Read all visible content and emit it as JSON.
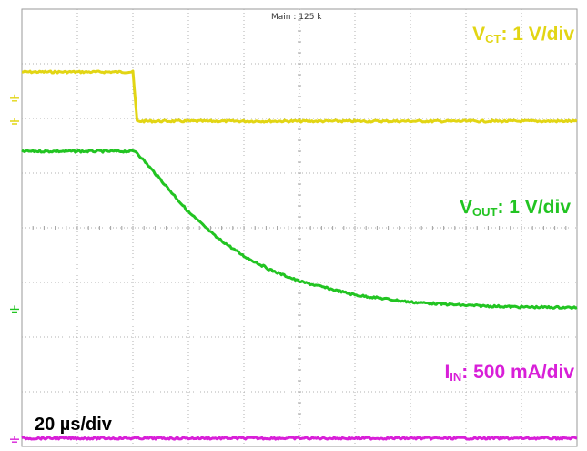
{
  "header": {
    "acquisition_label": "Main : 125 k"
  },
  "timebase_label": "20 µs/div",
  "channels": [
    {
      "key": "vct",
      "main": "V",
      "sub": "CT",
      "rest": ": 1 V/div",
      "color": "#e2d514"
    },
    {
      "key": "vout",
      "main": "V",
      "sub": "OUT",
      "rest": ": 1 V/div",
      "color": "#22c422"
    },
    {
      "key": "iin",
      "main": "I",
      "sub": "IN",
      "rest": ": 500 mA/div",
      "color": "#d81fd8"
    }
  ],
  "chart_data": {
    "type": "line",
    "grid": true,
    "x_divisions": 10,
    "y_divisions": 8,
    "x_unit": "µs",
    "xlim": [
      0,
      200
    ],
    "ylim": [
      -4,
      4
    ],
    "y_unit": "div",
    "series": [
      {
        "key": "vct",
        "color": "#e2d514",
        "x": [
          0,
          40,
          41.5,
          200
        ],
        "y": [
          2.85,
          2.85,
          1.95,
          1.95
        ]
      },
      {
        "key": "vout",
        "color": "#22c422",
        "x": [
          0,
          41,
          50,
          60,
          70,
          80,
          90,
          100,
          120,
          140,
          160,
          180,
          200
        ],
        "y": [
          1.4,
          1.4,
          0.88,
          0.29,
          -0.17,
          -0.52,
          -0.78,
          -0.98,
          -1.23,
          -1.36,
          -1.42,
          -1.45,
          -1.46
        ]
      },
      {
        "key": "iin",
        "color": "#d81fd8",
        "x": [
          0,
          200
        ],
        "y": [
          -3.85,
          -3.85
        ]
      }
    ],
    "markers": [
      {
        "color": "#e2d514",
        "y": 2.37
      },
      {
        "color": "#e2d514",
        "y": 1.95
      },
      {
        "color": "#22c422",
        "y": -1.49
      },
      {
        "color": "#d81fd8",
        "y": -3.87
      }
    ]
  }
}
